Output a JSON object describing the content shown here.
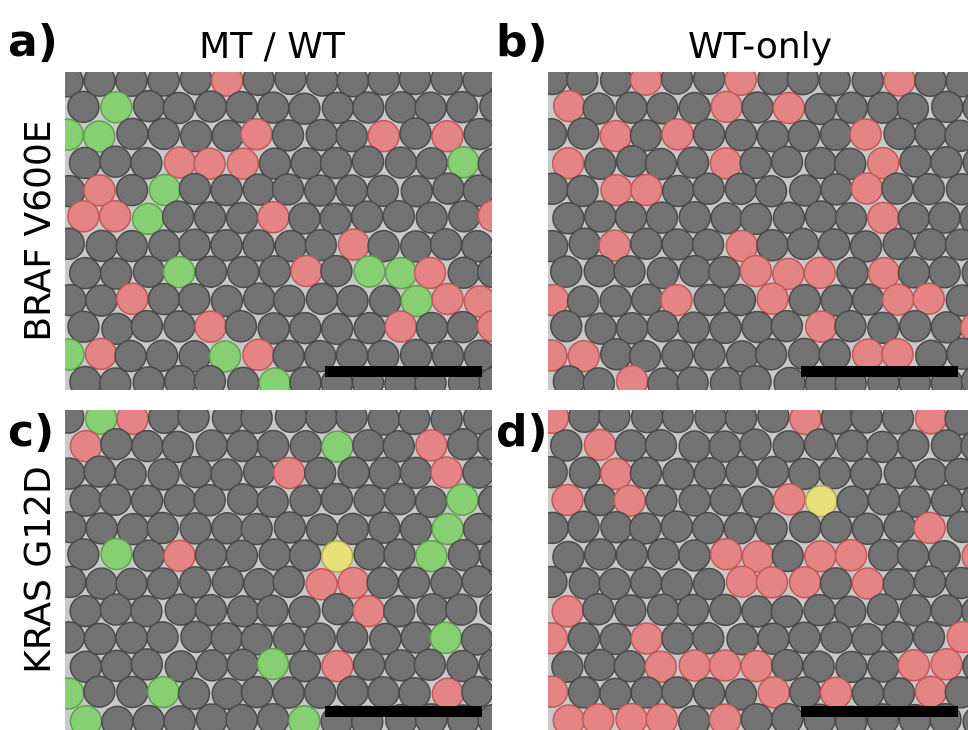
{
  "panels": [
    {
      "label": "a)",
      "column_title": "MT / WT",
      "row_title": "BRAF V600E"
    },
    {
      "label": "b)",
      "column_title": "WT-only"
    },
    {
      "label": "c)",
      "row_title": "KRAS G12D"
    },
    {
      "label": "d)"
    }
  ]
}
